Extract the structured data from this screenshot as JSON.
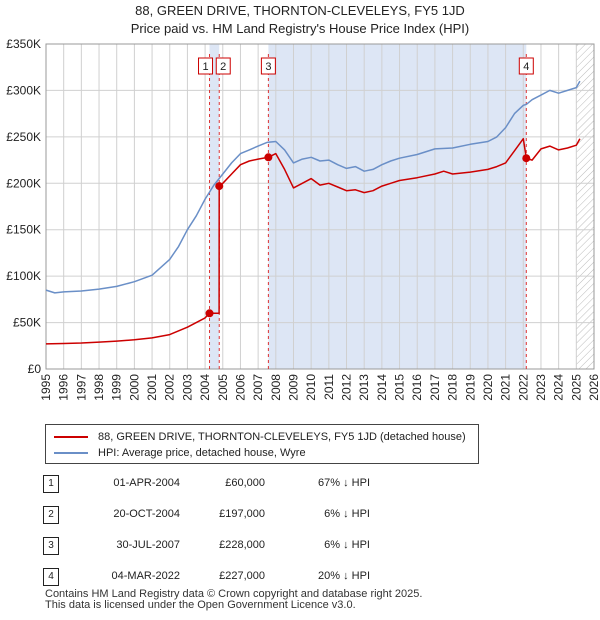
{
  "title_line1": "88, GREEN DRIVE, THORNTON-CLEVELEYS, FY5 1JD",
  "title_line2": "Price paid vs. HM Land Registry's House Price Index (HPI)",
  "legend": {
    "red": "88, GREEN DRIVE, THORNTON-CLEVELEYS, FY5 1JD (detached house)",
    "blue": "HPI: Average price, detached house, Wyre"
  },
  "transactions": [
    {
      "num": "1",
      "date": "01-APR-2004",
      "price": "£60,000",
      "hpi": "67% ↓ HPI"
    },
    {
      "num": "2",
      "date": "20-OCT-2004",
      "price": "£197,000",
      "hpi": "6% ↓ HPI"
    },
    {
      "num": "3",
      "date": "30-JUL-2007",
      "price": "£228,000",
      "hpi": "6% ↓ HPI"
    },
    {
      "num": "4",
      "date": "04-MAR-2022",
      "price": "£227,000",
      "hpi": "20% ↓ HPI"
    }
  ],
  "footer": {
    "line1": "Contains HM Land Registry data © Crown copyright and database right 2025.",
    "line2": "This data is licensed under the Open Government Licence v3.0."
  },
  "colors": {
    "price_paid": "#cc0000",
    "hpi": "#6a8fc7",
    "shade": "#dde6f5",
    "grid": "#d0d0d0"
  },
  "chart_data": {
    "type": "line",
    "xlim": [
      1995,
      2026
    ],
    "ylim": [
      0,
      350000
    ],
    "x_ticks": [
      "1995",
      "1996",
      "1997",
      "1998",
      "1999",
      "2000",
      "2001",
      "2002",
      "2003",
      "2004",
      "2005",
      "2006",
      "2007",
      "2008",
      "2009",
      "2010",
      "2011",
      "2012",
      "2013",
      "2014",
      "2015",
      "2016",
      "2017",
      "2018",
      "2019",
      "2020",
      "2021",
      "2022",
      "2023",
      "2024",
      "2025",
      "2026"
    ],
    "y_ticks": [
      {
        "value": 0,
        "label": "£0"
      },
      {
        "value": 50000,
        "label": "£50K"
      },
      {
        "value": 100000,
        "label": "£100K"
      },
      {
        "value": 150000,
        "label": "£150K"
      },
      {
        "value": 200000,
        "label": "£200K"
      },
      {
        "value": 250000,
        "label": "£250K"
      },
      {
        "value": 300000,
        "label": "£300K"
      },
      {
        "value": 350000,
        "label": "£350K"
      }
    ],
    "grid": true,
    "shaded_ranges": [
      [
        2004.25,
        2004.8
      ],
      [
        2007.58,
        2022.17
      ]
    ],
    "hatched_from": 2025.0,
    "sales": [
      {
        "label": "1",
        "x": 2004.25,
        "y": 60000
      },
      {
        "label": "2",
        "x": 2004.8,
        "y": 197000
      },
      {
        "label": "3",
        "x": 2007.58,
        "y": 228000
      },
      {
        "label": "4",
        "x": 2022.17,
        "y": 227000
      }
    ],
    "series": [
      {
        "name": "88, GREEN DRIVE, THORNTON-CLEVELEYS, FY5 1JD (detached house)",
        "x": [
          1995,
          1996,
          1997,
          1998,
          1999,
          2000,
          2001,
          2002,
          2003,
          2004,
          2004.25,
          2004.79,
          2004.8,
          2005,
          2005.5,
          2006,
          2006.5,
          2007,
          2007.58,
          2008,
          2008.5,
          2009,
          2009.5,
          2010,
          2010.5,
          2011,
          2011.5,
          2012,
          2012.5,
          2013,
          2013.5,
          2014,
          2014.5,
          2015,
          2016,
          2017,
          2017.5,
          2018,
          2019,
          2020,
          2020.5,
          2021,
          2021.5,
          2022,
          2022.17,
          2022.5,
          2023,
          2023.5,
          2024,
          2024.5,
          2025,
          2025.2
        ],
        "y": [
          27000,
          27500,
          28000,
          29000,
          30000,
          31500,
          33500,
          37000,
          45000,
          55000,
          60000,
          60000,
          197000,
          200000,
          210000,
          220000,
          224000,
          226000,
          228000,
          232000,
          215000,
          195000,
          200000,
          205000,
          198000,
          200000,
          196000,
          192000,
          193000,
          190000,
          192000,
          197000,
          200000,
          203000,
          206000,
          210000,
          213000,
          210000,
          212000,
          215000,
          218000,
          222000,
          235000,
          248000,
          227000,
          225000,
          237000,
          240000,
          236000,
          238000,
          241000,
          248000
        ]
      },
      {
        "name": "HPI: Average price, detached house, Wyre",
        "x": [
          1995,
          1995.5,
          1996,
          1997,
          1998,
          1999,
          2000,
          2001,
          2002,
          2002.5,
          2003,
          2003.5,
          2004,
          2004.5,
          2005,
          2005.5,
          2006,
          2006.5,
          2007,
          2007.5,
          2008,
          2008.5,
          2009,
          2009.5,
          2010,
          2010.5,
          2011,
          2011.5,
          2012,
          2012.5,
          2013,
          2013.5,
          2014,
          2014.5,
          2015,
          2016,
          2017,
          2018,
          2019,
          2020,
          2020.5,
          2021,
          2021.5,
          2022,
          2022.17,
          2022.5,
          2023,
          2023.5,
          2024,
          2024.5,
          2025,
          2025.2
        ],
        "y": [
          85000,
          82000,
          83000,
          84000,
          86000,
          89000,
          94000,
          101000,
          118000,
          132000,
          150000,
          165000,
          183000,
          198000,
          210000,
          222000,
          232000,
          236000,
          240000,
          244000,
          245000,
          236000,
          222000,
          226000,
          228000,
          224000,
          225000,
          220000,
          216000,
          218000,
          213000,
          215000,
          220000,
          224000,
          227000,
          231000,
          237000,
          238000,
          242000,
          245000,
          250000,
          260000,
          275000,
          284000,
          285000,
          290000,
          295000,
          300000,
          297000,
          300000,
          303000,
          310000
        ]
      }
    ]
  }
}
